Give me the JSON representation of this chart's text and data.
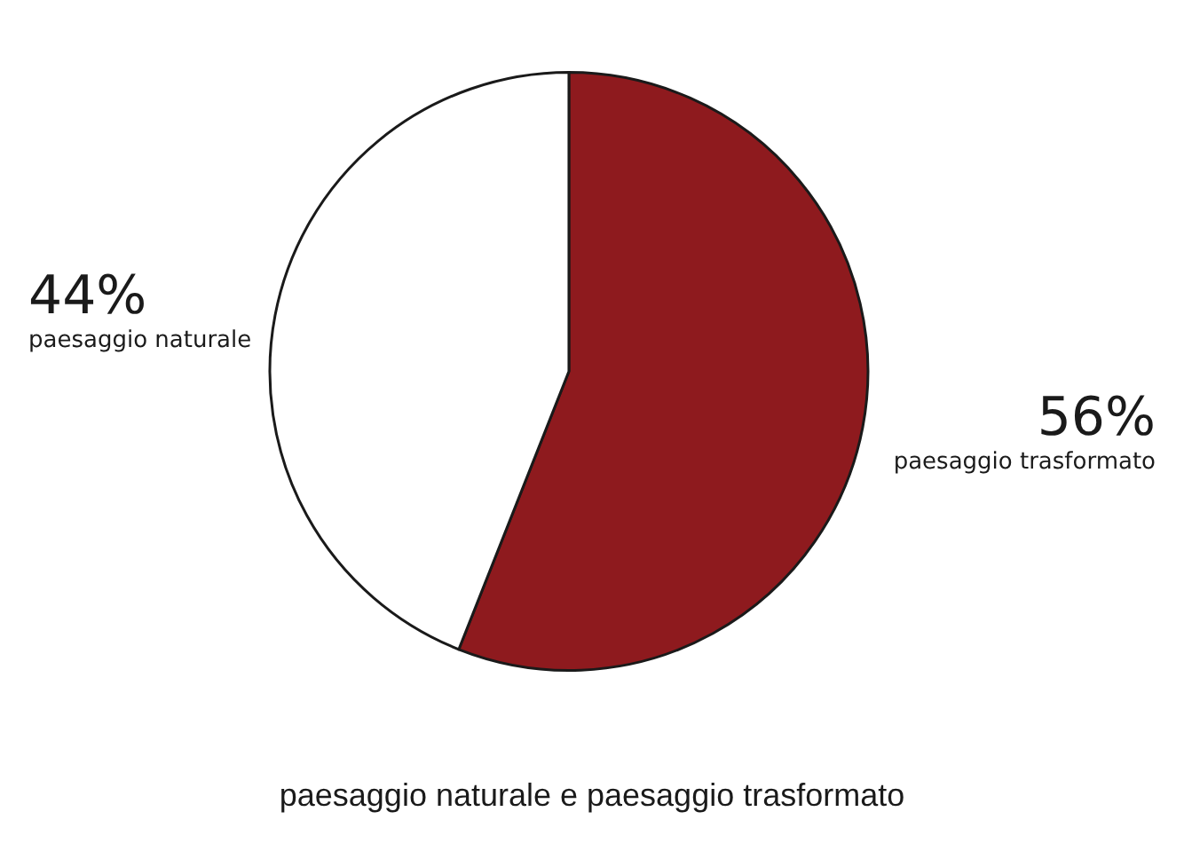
{
  "chart_data": {
    "type": "pie",
    "title": "paesaggio naturale e paesaggio trasformato",
    "categories": [
      "paesaggio trasformato",
      "paesaggio naturale"
    ],
    "values": [
      56,
      44
    ],
    "colors": [
      "#8e1a1e",
      "#ffffff"
    ],
    "value_labels": [
      "56%",
      "44%"
    ],
    "legend": false
  }
}
